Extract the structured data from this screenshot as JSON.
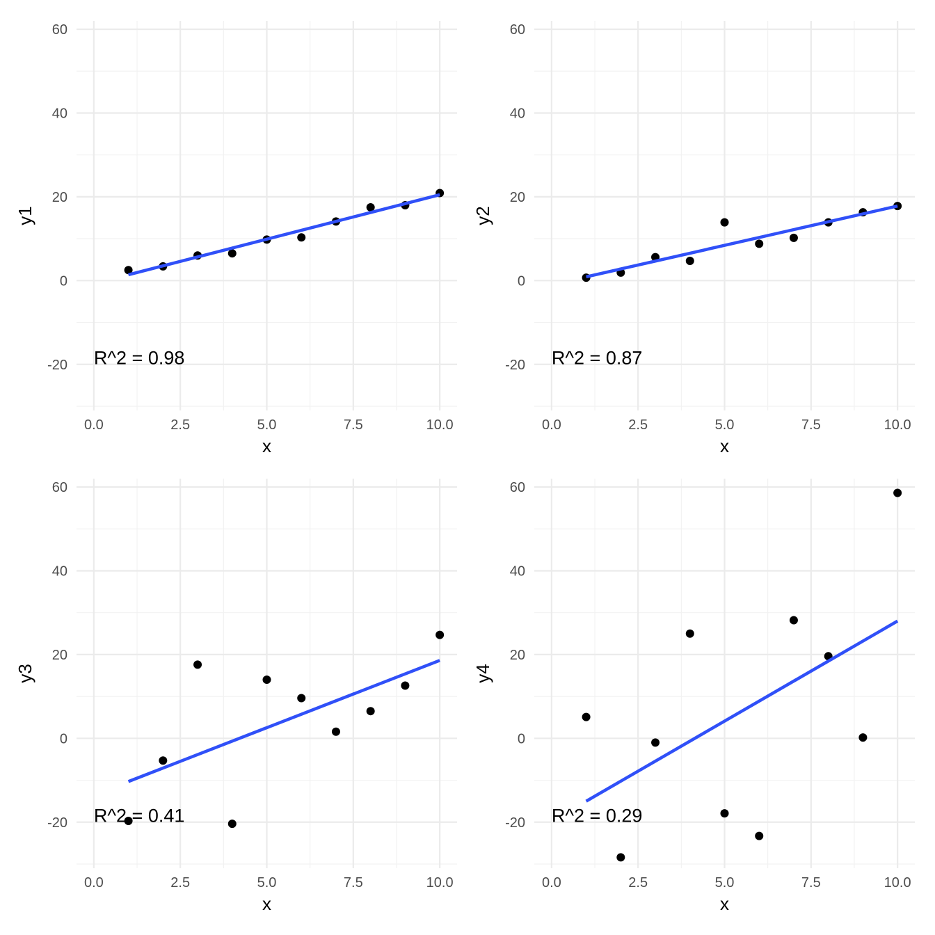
{
  "style": {
    "line_color": "#3050F8",
    "point_color": "#000000",
    "grid_major_color": "#EBEBEB",
    "grid_minor_color": "#F2F2F2",
    "background": "#FFFFFF"
  },
  "chart_data": [
    {
      "type": "scatter",
      "xlabel": "x",
      "ylabel": "y1",
      "xlim": [
        -0.5,
        10.5
      ],
      "ylim": [
        -31,
        62
      ],
      "x_ticks": [
        0.0,
        2.5,
        5.0,
        7.5,
        10.0
      ],
      "x_tick_labels": [
        "0.0",
        "2.5",
        "5.0",
        "7.5",
        "10.0"
      ],
      "y_ticks": [
        -20,
        0,
        20,
        40,
        60
      ],
      "y_tick_labels": [
        "-20",
        "0",
        "20",
        "40",
        "60"
      ],
      "grid": true,
      "points": {
        "x": [
          1,
          2,
          3,
          4,
          5,
          6,
          7,
          8,
          9,
          10
        ],
        "y": [
          2.5,
          3.4,
          6.0,
          6.5,
          9.8,
          10.3,
          14.1,
          17.5,
          18.0,
          20.9
        ]
      },
      "fit_line": {
        "x": [
          1,
          10
        ],
        "y": [
          1.4,
          20.5
        ]
      },
      "annotation": {
        "text": "R^2 =  0.98",
        "x": 0,
        "y": -18.5
      }
    },
    {
      "type": "scatter",
      "xlabel": "x",
      "ylabel": "y2",
      "xlim": [
        -0.5,
        10.5
      ],
      "ylim": [
        -31,
        62
      ],
      "x_ticks": [
        0.0,
        2.5,
        5.0,
        7.5,
        10.0
      ],
      "x_tick_labels": [
        "0.0",
        "2.5",
        "5.0",
        "7.5",
        "10.0"
      ],
      "y_ticks": [
        -20,
        0,
        20,
        40,
        60
      ],
      "y_tick_labels": [
        "-20",
        "0",
        "20",
        "40",
        "60"
      ],
      "grid": true,
      "points": {
        "x": [
          1,
          2,
          3,
          4,
          5,
          6,
          7,
          8,
          9,
          10
        ],
        "y": [
          0.7,
          1.9,
          5.6,
          4.7,
          13.9,
          8.8,
          10.2,
          13.9,
          16.3,
          17.8
        ]
      },
      "fit_line": {
        "x": [
          1,
          10
        ],
        "y": [
          0.9,
          17.8
        ]
      },
      "annotation": {
        "text": "R^2 =  0.87",
        "x": 0,
        "y": -18.5
      }
    },
    {
      "type": "scatter",
      "xlabel": "x",
      "ylabel": "y3",
      "xlim": [
        -0.5,
        10.5
      ],
      "ylim": [
        -31,
        62
      ],
      "x_ticks": [
        0.0,
        2.5,
        5.0,
        7.5,
        10.0
      ],
      "x_tick_labels": [
        "0.0",
        "2.5",
        "5.0",
        "7.5",
        "10.0"
      ],
      "y_ticks": [
        -20,
        0,
        20,
        40,
        60
      ],
      "y_tick_labels": [
        "-20",
        "0",
        "20",
        "40",
        "60"
      ],
      "grid": true,
      "points": {
        "x": [
          1,
          2,
          3,
          4,
          5,
          6,
          7,
          8,
          9,
          10
        ],
        "y": [
          -19.7,
          -5.3,
          17.6,
          -20.4,
          14.0,
          9.6,
          1.6,
          6.5,
          12.6,
          24.7
        ]
      },
      "fit_line": {
        "x": [
          1,
          10
        ],
        "y": [
          -10.3,
          18.6
        ]
      },
      "annotation": {
        "text": "R^2 =  0.41",
        "x": 0,
        "y": -18.5
      }
    },
    {
      "type": "scatter",
      "xlabel": "x",
      "ylabel": "y4",
      "xlim": [
        -0.5,
        10.5
      ],
      "ylim": [
        -31,
        62
      ],
      "x_ticks": [
        0.0,
        2.5,
        5.0,
        7.5,
        10.0
      ],
      "x_tick_labels": [
        "0.0",
        "2.5",
        "5.0",
        "7.5",
        "10.0"
      ],
      "y_ticks": [
        -20,
        0,
        20,
        40,
        60
      ],
      "y_tick_labels": [
        "-20",
        "0",
        "20",
        "40",
        "60"
      ],
      "grid": true,
      "points": {
        "x": [
          1,
          2,
          3,
          4,
          5,
          6,
          7,
          8,
          9,
          10
        ],
        "y": [
          5.1,
          -28.4,
          -1.0,
          25.0,
          -17.9,
          -23.3,
          28.2,
          19.6,
          0.2,
          58.6
        ]
      },
      "fit_line": {
        "x": [
          1,
          10
        ],
        "y": [
          -15.0,
          28.0
        ]
      },
      "annotation": {
        "text": "R^2 =  0.29",
        "x": 0,
        "y": -18.5
      }
    }
  ]
}
